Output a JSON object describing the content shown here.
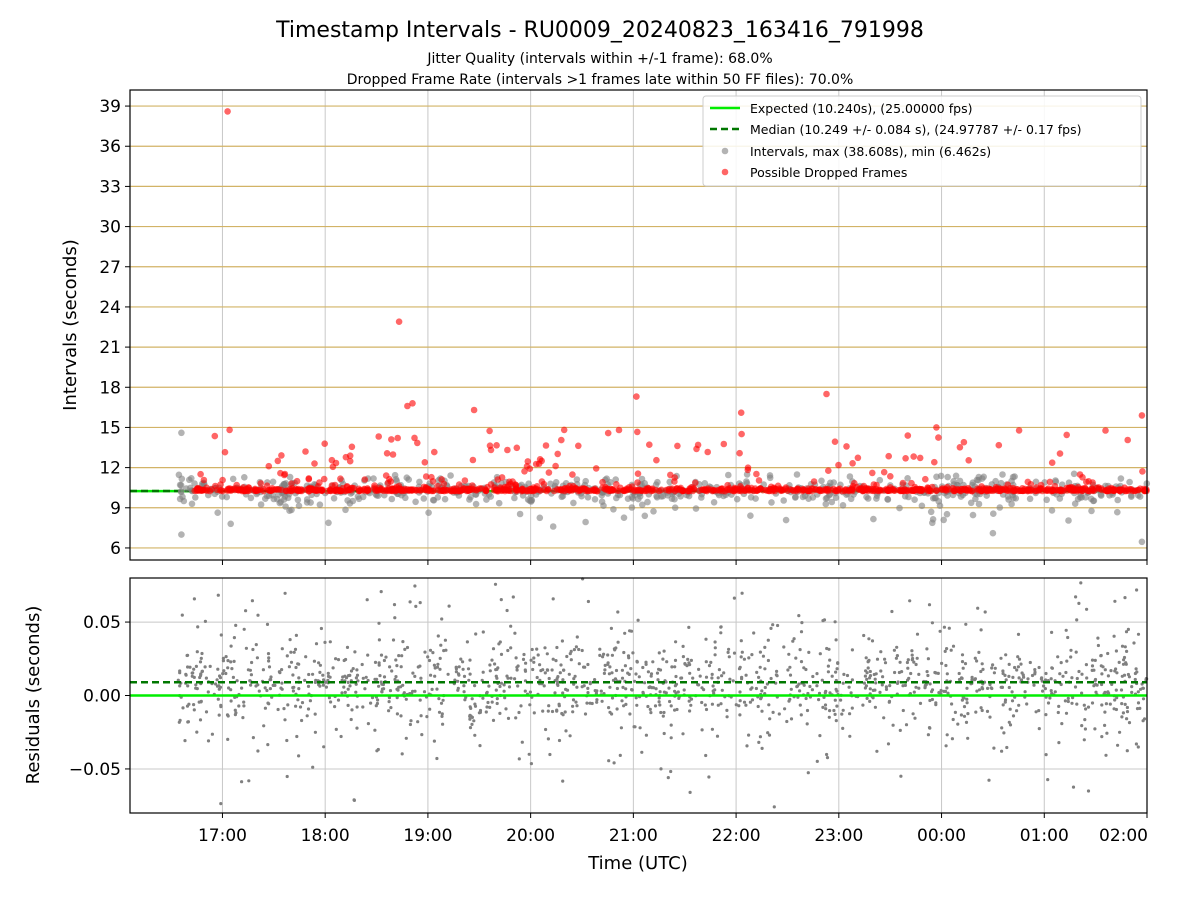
{
  "chart_data": {
    "type": "scatter",
    "title": "Timestamp Intervals - RU0009_20240823_163416_791998",
    "subtitle_lines": [
      "Jitter Quality (intervals within +/-1 frame): 68.0%",
      "Dropped Frame Rate (intervals >1 frames late within 50 FF files): 70.0%"
    ],
    "xlabel": "Time (UTC)",
    "x_ticks": [
      "17:00",
      "18:00",
      "19:00",
      "20:00",
      "21:00",
      "22:00",
      "23:00",
      "00:00",
      "01:00",
      "02:00"
    ],
    "x_range_hours": [
      16.1,
      26.0
    ],
    "data_x_range_hours": [
      16.57,
      26.0
    ],
    "colors": {
      "expected": "#00ee00",
      "median": "#007700",
      "intervals": "#808080",
      "dropped": "#ff0000",
      "top_grid": "#d2b366",
      "grid": "#c8c8c8"
    },
    "top_panel": {
      "ylabel": "Intervals (seconds)",
      "ylim": [
        5.1,
        40.2
      ],
      "y_ticks": [
        "6",
        "9",
        "12",
        "15",
        "18",
        "21",
        "24",
        "27",
        "30",
        "33",
        "36",
        "39"
      ],
      "grid": true,
      "expected_interval": 10.24,
      "median_interval": 10.249,
      "max_interval": 38.608,
      "min_interval": 6.462,
      "legend_position": "upper right",
      "legend": [
        {
          "label": "Expected (10.240s), (25.00000 fps)",
          "kind": "solid-line",
          "color": "#00ee00"
        },
        {
          "label": "Median (10.249 +/- 0.084 s), (24.97787 +/- 0.17 fps)",
          "kind": "dashed-line",
          "color": "#007700"
        },
        {
          "label": "Intervals, max (38.608s), min (6.462s)",
          "kind": "marker",
          "color": "#808080"
        },
        {
          "label": "Possible Dropped Frames",
          "kind": "marker",
          "color": "#ff0000"
        }
      ],
      "notable_points": [
        {
          "x": 17.05,
          "y": 38.6,
          "series": "dropped"
        },
        {
          "x": 18.72,
          "y": 22.9,
          "series": "dropped"
        },
        {
          "x": 18.8,
          "y": 16.6,
          "series": "dropped"
        },
        {
          "x": 18.85,
          "y": 16.8,
          "series": "dropped"
        },
        {
          "x": 22.88,
          "y": 17.5,
          "series": "dropped"
        },
        {
          "x": 21.03,
          "y": 17.3,
          "series": "dropped"
        },
        {
          "x": 22.05,
          "y": 16.1,
          "series": "dropped"
        },
        {
          "x": 25.95,
          "y": 15.9,
          "series": "dropped"
        },
        {
          "x": 19.45,
          "y": 16.3,
          "series": "dropped"
        },
        {
          "x": 23.95,
          "y": 15.0,
          "series": "dropped"
        },
        {
          "x": 16.6,
          "y": 14.6,
          "series": "intervals"
        },
        {
          "x": 16.6,
          "y": 7.0,
          "series": "intervals"
        },
        {
          "x": 17.08,
          "y": 7.8,
          "series": "intervals"
        },
        {
          "x": 20.22,
          "y": 7.6,
          "series": "intervals"
        },
        {
          "x": 24.5,
          "y": 7.1,
          "series": "intervals"
        },
        {
          "x": 25.95,
          "y": 6.462,
          "series": "intervals"
        }
      ]
    },
    "bottom_panel": {
      "ylabel": "Residuals (seconds)",
      "ylim": [
        -0.08,
        0.08
      ],
      "y_ticks": [
        "−0.05",
        "0.00",
        "0.05"
      ],
      "y_tick_values": [
        -0.05,
        0.0,
        0.05
      ],
      "grid": true,
      "median_residual": 0.009,
      "expected_residual": 0.0,
      "residual_spread_sd": 0.028,
      "series_color": "#808080"
    }
  }
}
